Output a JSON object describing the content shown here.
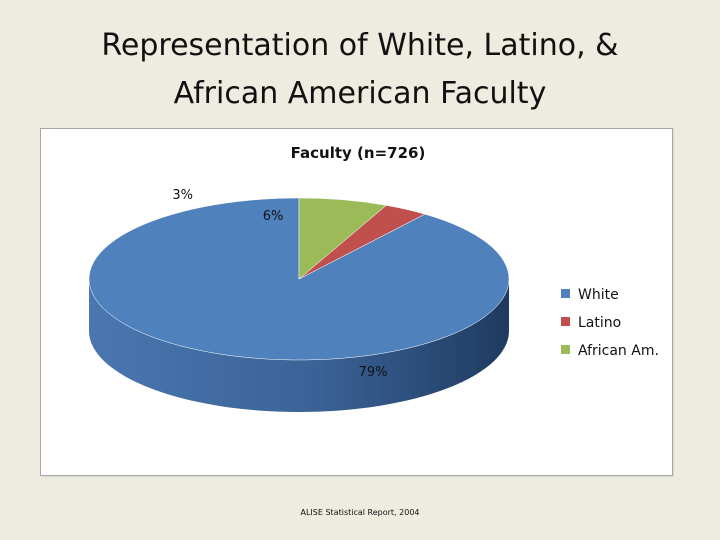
{
  "slide": {
    "title_line1": "Representation of White, Latino, &",
    "title_line2": "African American Faculty",
    "source": "ALISE Statistical Report, 2004"
  },
  "chart_data": {
    "type": "pie",
    "title": "Faculty (n=726)",
    "categories": [
      "White",
      "Latino",
      "African Am."
    ],
    "values": [
      79,
      3,
      6
    ],
    "labels": [
      "79%",
      "3%",
      "6%"
    ],
    "colors": [
      "#4f81bd",
      "#c0504d",
      "#9bbb59"
    ],
    "legend": "right",
    "three_d": true
  }
}
